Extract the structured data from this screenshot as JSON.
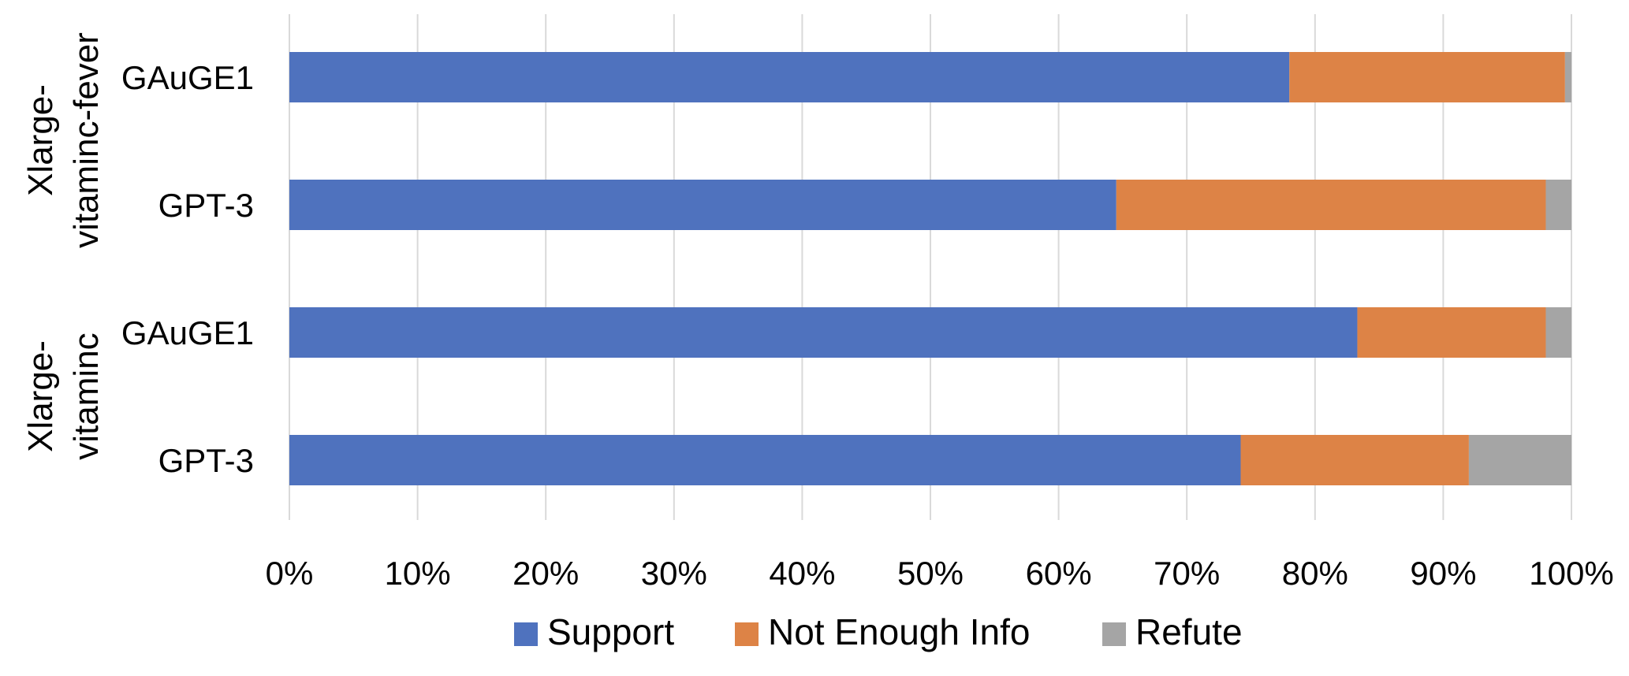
{
  "chart_data": {
    "type": "bar",
    "orientation": "horizontal",
    "stacked": true,
    "normalized": true,
    "groups": [
      {
        "label_lines": [
          "Xlarge-",
          "vitaminc-fever"
        ],
        "categories": [
          "GAuGE1",
          "GPT-3"
        ]
      },
      {
        "label_lines": [
          "Xlarge-",
          "vitaminc"
        ],
        "categories": [
          "GAuGE1",
          "GPT-3"
        ]
      }
    ],
    "categories": [
      "GAuGE1",
      "GPT-3",
      "GAuGE1",
      "GPT-3"
    ],
    "series": [
      {
        "name": "Support",
        "color": "#4f72be",
        "values": [
          78,
          64.5,
          83.3,
          74.2
        ]
      },
      {
        "name": "Not Enough Info",
        "color": "#dd8346",
        "values": [
          21.5,
          33.5,
          14.7,
          17.8
        ]
      },
      {
        "name": "Refute",
        "color": "#a5a5a5",
        "values": [
          0.5,
          2.0,
          2.0,
          8.0
        ]
      }
    ],
    "xlim": [
      0,
      100
    ],
    "xticks": [
      "0%",
      "10%",
      "20%",
      "30%",
      "40%",
      "50%",
      "60%",
      "70%",
      "80%",
      "90%",
      "100%"
    ],
    "grid": true,
    "legend_position": "bottom",
    "gridline_color": "#d9d9d9"
  }
}
